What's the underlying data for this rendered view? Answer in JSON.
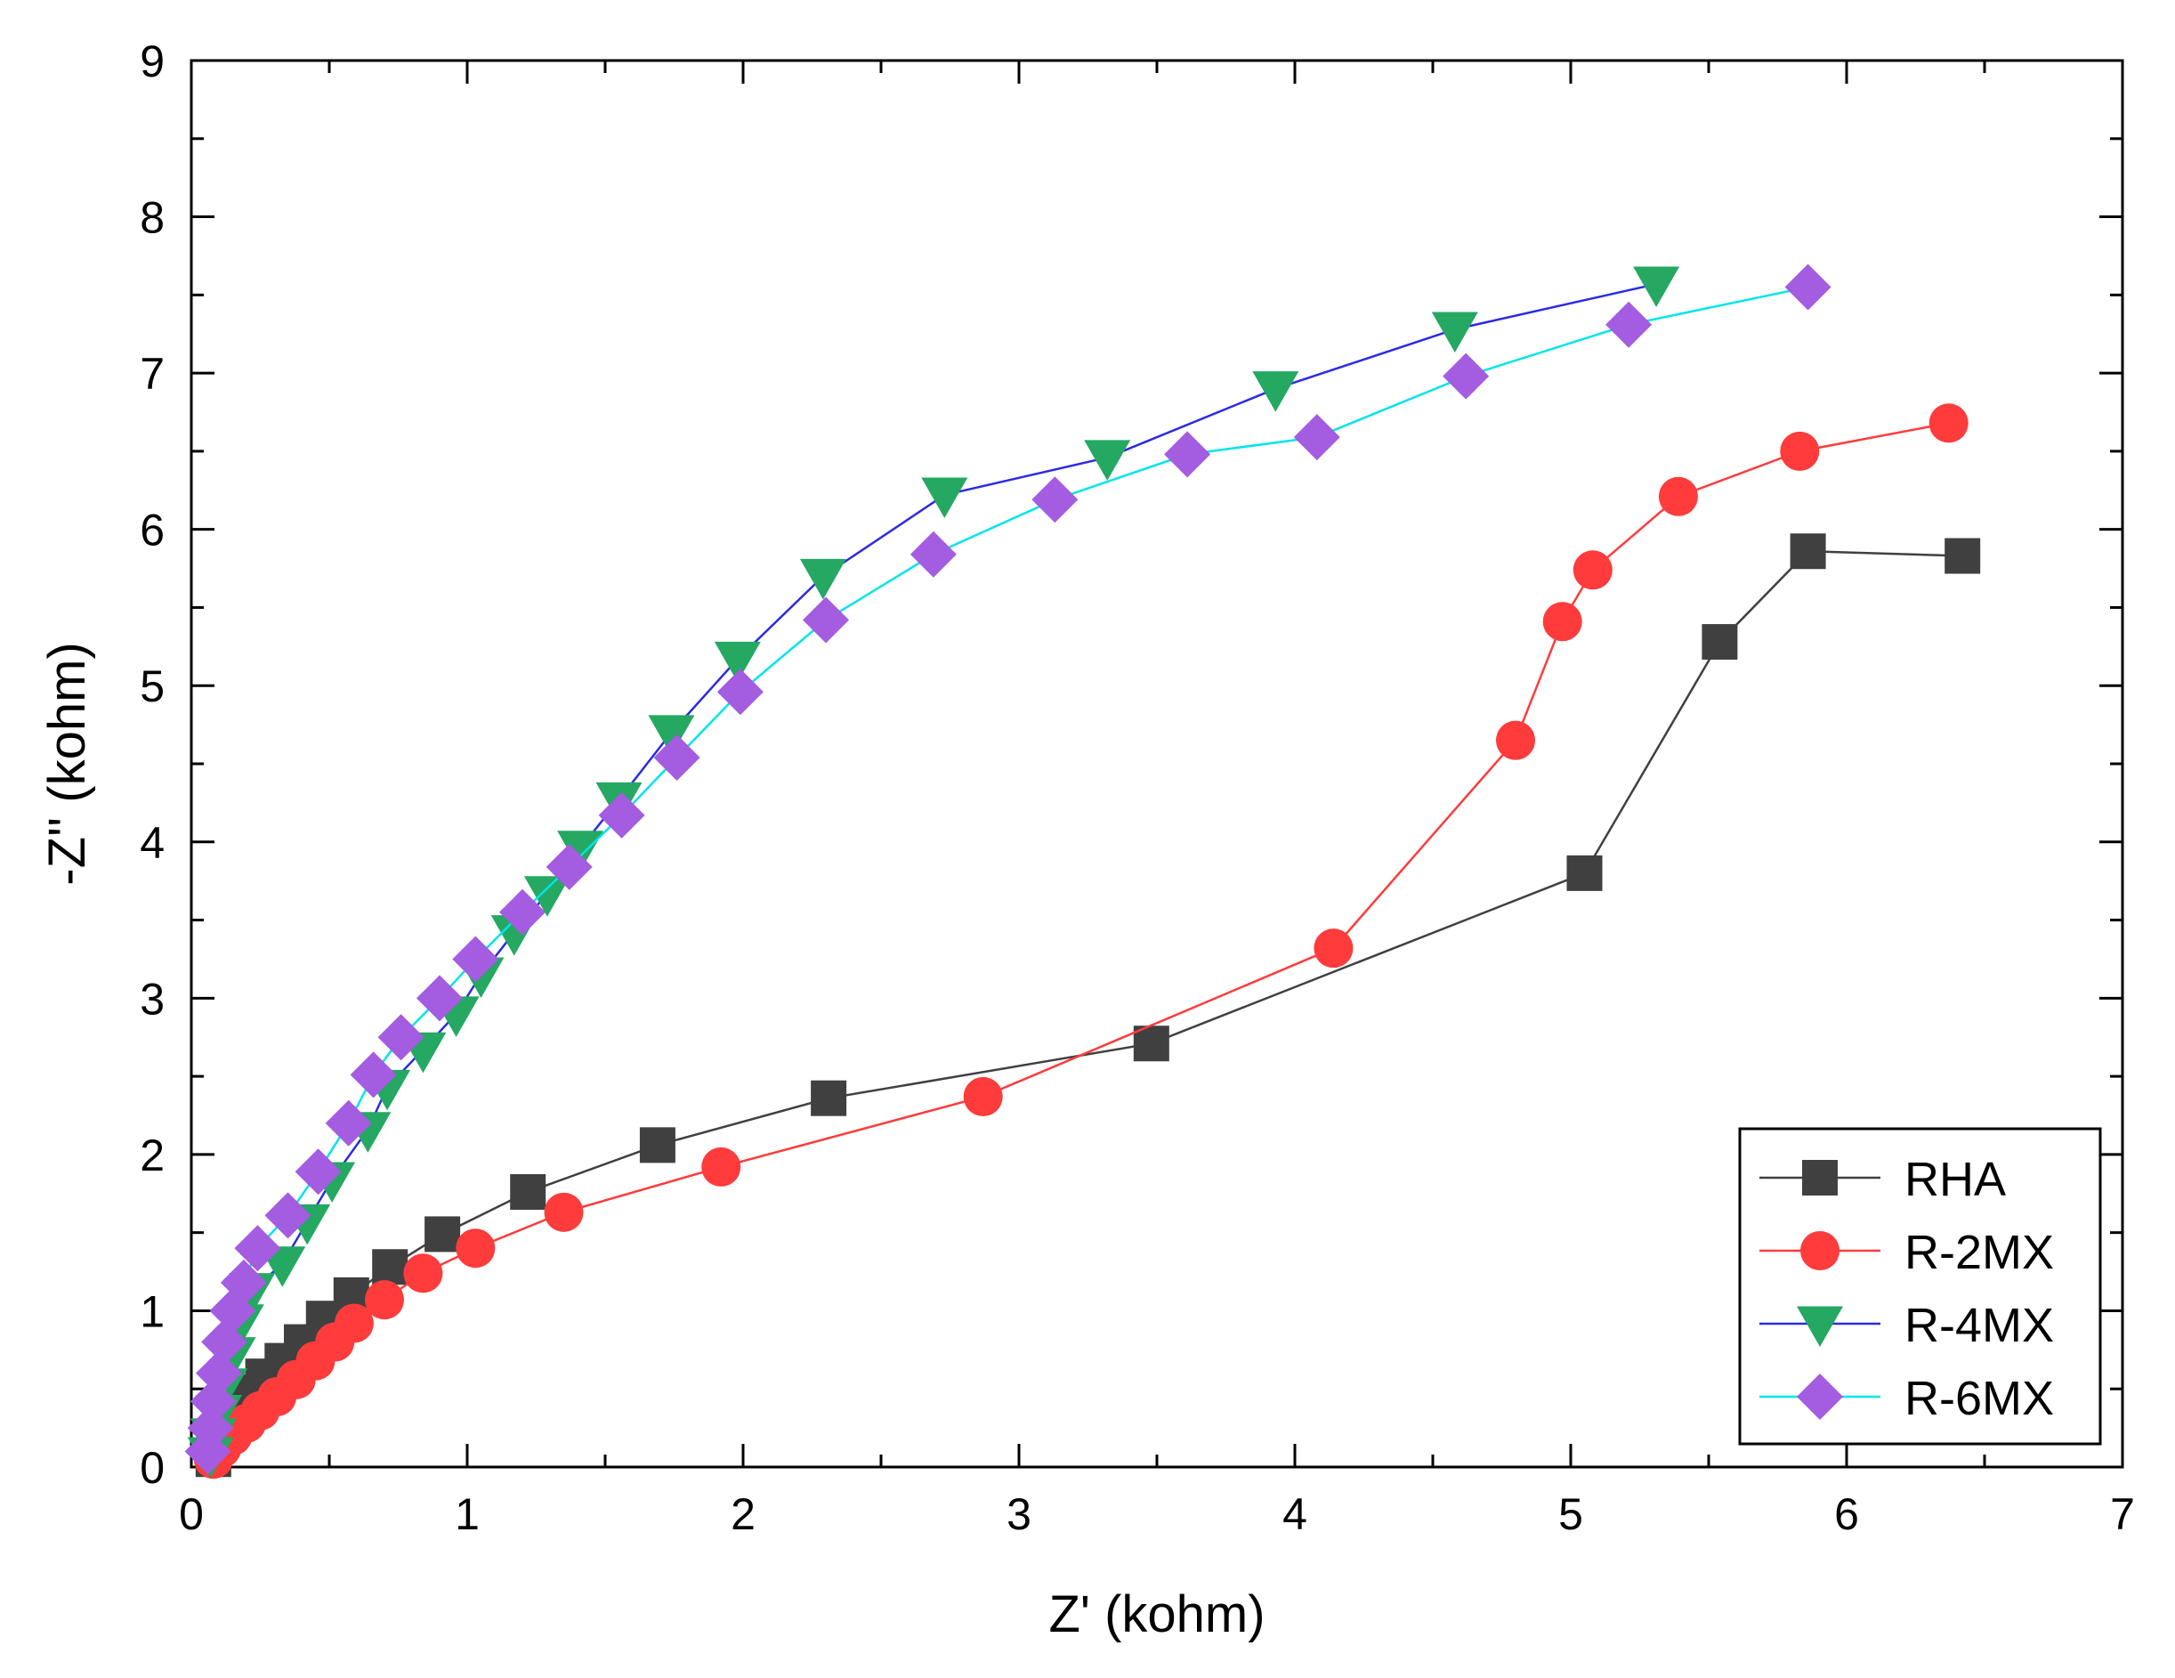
{
  "chart_data": {
    "type": "line",
    "title": "",
    "xlabel": "Z' (kohm)",
    "ylabel": "-Z'' (kohm)",
    "xlim": [
      0,
      7
    ],
    "ylim": [
      0,
      9
    ],
    "xticks": [
      "0",
      "1",
      "2",
      "3",
      "4",
      "5",
      "6",
      "7"
    ],
    "yticks": [
      "0",
      "1",
      "2",
      "3",
      "4",
      "5",
      "6",
      "7",
      "8",
      "9"
    ],
    "grid": false,
    "legend_position": "bottom-right",
    "series": [
      {
        "name": "RHA",
        "color": "#404040",
        "marker": "square",
        "points": [
          [
            0.08,
            0.05
          ],
          [
            0.1,
            0.18
          ],
          [
            0.13,
            0.3
          ],
          [
            0.17,
            0.4
          ],
          [
            0.21,
            0.48
          ],
          [
            0.26,
            0.58
          ],
          [
            0.33,
            0.68
          ],
          [
            0.4,
            0.8
          ],
          [
            0.48,
            0.95
          ],
          [
            0.58,
            1.1
          ],
          [
            0.72,
            1.28
          ],
          [
            0.91,
            1.49
          ],
          [
            1.22,
            1.76
          ],
          [
            1.69,
            2.06
          ],
          [
            2.31,
            2.36
          ],
          [
            3.48,
            2.71
          ],
          [
            5.05,
            3.8
          ],
          [
            5.54,
            5.28
          ],
          [
            5.86,
            5.86
          ],
          [
            6.42,
            5.83
          ]
        ]
      },
      {
        "name": "R-2MX",
        "color": "#ff3b3b",
        "marker": "circle",
        "points": [
          [
            0.08,
            0.05
          ],
          [
            0.11,
            0.12
          ],
          [
            0.15,
            0.2
          ],
          [
            0.2,
            0.28
          ],
          [
            0.25,
            0.36
          ],
          [
            0.31,
            0.45
          ],
          [
            0.38,
            0.56
          ],
          [
            0.45,
            0.68
          ],
          [
            0.52,
            0.8
          ],
          [
            0.59,
            0.92
          ],
          [
            0.7,
            1.07
          ],
          [
            0.84,
            1.24
          ],
          [
            1.03,
            1.4
          ],
          [
            1.35,
            1.63
          ],
          [
            1.92,
            1.92
          ],
          [
            2.87,
            2.37
          ],
          [
            4.14,
            3.32
          ],
          [
            4.8,
            4.65
          ],
          [
            4.97,
            5.41
          ],
          [
            5.08,
            5.74
          ],
          [
            5.39,
            6.21
          ],
          [
            5.83,
            6.5
          ],
          [
            6.37,
            6.68
          ]
        ]
      },
      {
        "name": "R-4MX",
        "color": "#2a2ae6",
        "marker_color": "#24a862",
        "marker": "triangle-down",
        "points": [
          [
            0.07,
            0.08
          ],
          [
            0.08,
            0.2
          ],
          [
            0.1,
            0.35
          ],
          [
            0.12,
            0.52
          ],
          [
            0.15,
            0.72
          ],
          [
            0.18,
            0.93
          ],
          [
            0.22,
            1.13
          ],
          [
            0.33,
            1.3
          ],
          [
            0.42,
            1.57
          ],
          [
            0.51,
            1.84
          ],
          [
            0.64,
            2.16
          ],
          [
            0.71,
            2.43
          ],
          [
            0.84,
            2.67
          ],
          [
            0.96,
            2.9
          ],
          [
            1.05,
            3.15
          ],
          [
            1.17,
            3.42
          ],
          [
            1.29,
            3.67
          ],
          [
            1.41,
            3.96
          ],
          [
            1.55,
            4.27
          ],
          [
            1.74,
            4.7
          ],
          [
            1.98,
            5.17
          ],
          [
            2.29,
            5.7
          ],
          [
            2.73,
            6.22
          ],
          [
            3.32,
            6.46
          ],
          [
            3.93,
            6.9
          ],
          [
            4.58,
            7.28
          ],
          [
            5.31,
            7.57
          ]
        ]
      },
      {
        "name": "R-6MX",
        "color": "#00e5ea",
        "marker_color": "#a45ce0",
        "marker": "diamond",
        "points": [
          [
            0.06,
            0.1
          ],
          [
            0.07,
            0.25
          ],
          [
            0.08,
            0.42
          ],
          [
            0.1,
            0.6
          ],
          [
            0.12,
            0.8
          ],
          [
            0.15,
            1.0
          ],
          [
            0.19,
            1.18
          ],
          [
            0.24,
            1.4
          ],
          [
            0.35,
            1.61
          ],
          [
            0.46,
            1.89
          ],
          [
            0.57,
            2.2
          ],
          [
            0.66,
            2.51
          ],
          [
            0.76,
            2.75
          ],
          [
            0.9,
            3.0
          ],
          [
            1.03,
            3.25
          ],
          [
            1.2,
            3.55
          ],
          [
            1.37,
            3.84
          ],
          [
            1.56,
            4.17
          ],
          [
            1.76,
            4.54
          ],
          [
            1.99,
            4.96
          ],
          [
            2.3,
            5.42
          ],
          [
            2.69,
            5.84
          ],
          [
            3.13,
            6.19
          ],
          [
            3.61,
            6.48
          ],
          [
            4.08,
            6.59
          ],
          [
            4.62,
            6.98
          ],
          [
            5.21,
            7.31
          ],
          [
            5.86,
            7.55
          ]
        ]
      }
    ]
  }
}
